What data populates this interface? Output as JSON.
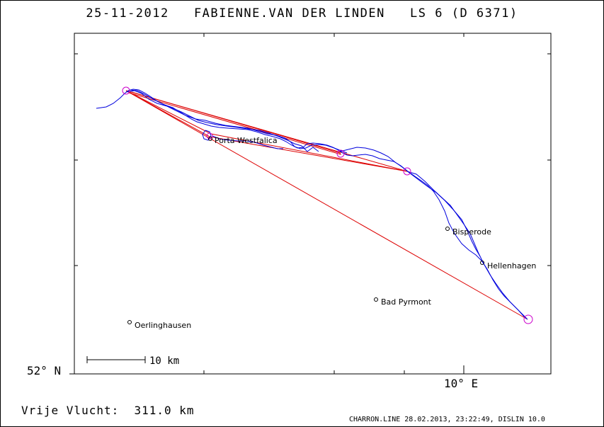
{
  "title": "25-11-2012   FABIENNE.VAN DER LINDEN   LS 6 (D 6371)",
  "axis": {
    "lat_label": "52° N",
    "lon_label": "10° E"
  },
  "scale_bar": {
    "label": "10 km"
  },
  "towns": [
    {
      "name": "Porta Westfalica"
    },
    {
      "name": "Bisperode"
    },
    {
      "name": "Hellenhagen"
    },
    {
      "name": "Bad Pyrmont"
    },
    {
      "name": "Oerlinghausen"
    }
  ],
  "distance_label": "Vrije Vlucht:  311.0 km",
  "footer": "CHARRON.LINE 28.02.2013, 23:22:49, DISLIN 10.0",
  "colors": {
    "track": "#0000dd",
    "task": "#dd0000",
    "turnpoint": "#cc00cc",
    "frame": "#000000",
    "background": "#ffffff"
  },
  "icons": {
    "turnpoint": "circle-marker",
    "town": "small-circle-marker"
  }
}
